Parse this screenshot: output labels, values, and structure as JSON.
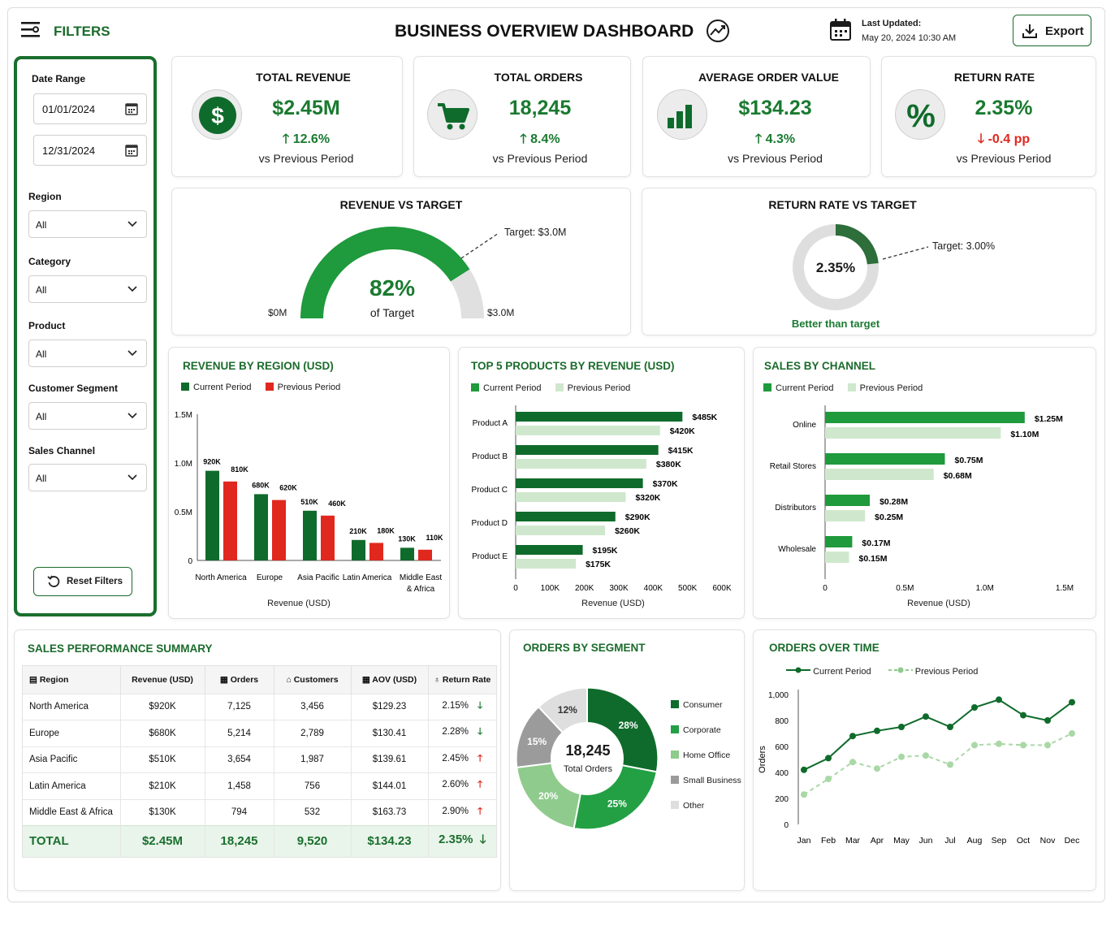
{
  "header": {
    "filters_label": "FILTERS",
    "title": "BUSINESS OVERVIEW DASHBOARD",
    "last_updated_label": "Last Updated:",
    "last_updated_value": "May 20, 2024 10:30 AM",
    "export_label": "Export"
  },
  "filters": {
    "date_range_label": "Date Range",
    "start_date": "01/01/2024",
    "end_date": "12/31/2024",
    "region_label": "Region",
    "region_value": "All",
    "category_label": "Category",
    "category_value": "All",
    "product_label": "Product",
    "product_value": "All",
    "segment_label": "Customer Segment",
    "segment_value": "All",
    "channel_label": "Sales Channel",
    "channel_value": "All",
    "reset_label": "Reset Filters"
  },
  "kpis": [
    {
      "title": "TOTAL REVENUE",
      "value": "$2.45M",
      "change": "12.6%",
      "direction": "up",
      "sub": "vs Previous Period",
      "icon": "dollar-icon"
    },
    {
      "title": "TOTAL ORDERS",
      "value": "18,245",
      "change": "8.4%",
      "direction": "up",
      "sub": "vs Previous Period",
      "icon": "cart-icon"
    },
    {
      "title": "AVERAGE ORDER VALUE",
      "value": "$134.23",
      "change": "4.3%",
      "direction": "up",
      "sub": "vs Previous Period",
      "icon": "bar-chart-icon"
    },
    {
      "title": "RETURN RATE",
      "value": "2.35%",
      "change": "-0.4 pp",
      "direction": "down",
      "sub": "vs Previous Period",
      "icon": "percent-icon"
    }
  ],
  "revenue_target": {
    "title": "REVENUE VS TARGET",
    "percent": "82%",
    "percent_value": 82,
    "of_target": "of Target",
    "min_label": "$0M",
    "max_label": "$3.0M",
    "target_label": "Target: $3.0M"
  },
  "return_target": {
    "title": "RETURN RATE VS TARGET",
    "value": "2.35%",
    "value_num": 2.35,
    "target_num": 3.0,
    "target_label": "Target: 3.00%",
    "status": "Better than target"
  },
  "colors": {
    "dark_green": "#0f6b2b",
    "green": "#1f9a3c",
    "light_green": "#a9d8a6",
    "pale_green": "#cfe8cd",
    "red": "#e0281f",
    "gray": "#9a9a9a",
    "light_gray": "#dedede"
  },
  "chart_data": [
    {
      "type": "bar",
      "title": "REVENUE BY REGION (USD)",
      "xlabel": "Revenue (USD)",
      "categories": [
        "North America",
        "Europe",
        "Asia Pacific",
        "Latin America",
        "Middle East & Africa"
      ],
      "series": [
        {
          "name": "Current Period",
          "values": [
            920,
            680,
            510,
            210,
            130
          ],
          "labels": [
            "920K",
            "680K",
            "510K",
            "210K",
            "130K"
          ]
        },
        {
          "name": "Previous Period",
          "values": [
            810,
            620,
            460,
            180,
            110
          ],
          "labels": [
            "810K",
            "620K",
            "460K",
            "180K",
            "110K"
          ]
        }
      ],
      "yticks": [
        "0",
        "0.5M",
        "1.0M",
        "1.5M"
      ],
      "ylim": [
        0,
        1500
      ]
    },
    {
      "type": "bar",
      "orientation": "horizontal",
      "title": "TOP 5 PRODUCTS BY REVENUE (USD)",
      "xlabel": "Revenue (USD)",
      "categories": [
        "Product A",
        "Product B",
        "Product C",
        "Product D",
        "Product E"
      ],
      "series": [
        {
          "name": "Current Period",
          "values": [
            485,
            415,
            370,
            290,
            195
          ],
          "labels": [
            "$485K",
            "$415K",
            "$370K",
            "$290K",
            "$195K"
          ]
        },
        {
          "name": "Previous Period",
          "values": [
            420,
            380,
            320,
            260,
            175
          ],
          "labels": [
            "$420K",
            "$380K",
            "$320K",
            "$260K",
            "$175K"
          ]
        }
      ],
      "xticks": [
        "0",
        "100K",
        "200K",
        "300K",
        "400K",
        "500K",
        "600K"
      ],
      "xlim": [
        0,
        600
      ]
    },
    {
      "type": "bar",
      "orientation": "horizontal",
      "title": "SALES BY CHANNEL",
      "xlabel": "Revenue (USD)",
      "categories": [
        "Online",
        "Retail Stores",
        "Distributors",
        "Wholesale"
      ],
      "series": [
        {
          "name": "Current Period",
          "values": [
            1.25,
            0.75,
            0.28,
            0.17
          ],
          "labels": [
            "$1.25M",
            "$0.75M",
            "$0.28M",
            "$0.17M"
          ]
        },
        {
          "name": "Previous Period",
          "values": [
            1.1,
            0.68,
            0.25,
            0.15
          ],
          "labels": [
            "$1.10M",
            "$0.68M",
            "$0.25M",
            "$0.15M"
          ]
        }
      ],
      "xticks": [
        "0",
        "0.5M",
        "1.0M",
        "1.5M"
      ],
      "xlim": [
        0,
        1.5
      ]
    },
    {
      "type": "pie",
      "title": "ORDERS BY SEGMENT",
      "center_value": "18,245",
      "center_label": "Total Orders",
      "slices": [
        {
          "name": "Consumer",
          "value": 28,
          "label": "28%",
          "color": "#0f6b2b"
        },
        {
          "name": "Corporate",
          "value": 25,
          "label": "25%",
          "color": "#23a044"
        },
        {
          "name": "Home Office",
          "value": 20,
          "label": "20%",
          "color": "#8fcb8c"
        },
        {
          "name": "Small Business",
          "value": 15,
          "label": "15%",
          "color": "#9b9b9b"
        },
        {
          "name": "Other",
          "value": 12,
          "label": "12%",
          "color": "#dedede"
        }
      ]
    },
    {
      "type": "line",
      "title": "ORDERS OVER TIME",
      "ylabel": "Orders",
      "x": [
        "Jan",
        "Feb",
        "Mar",
        "Apr",
        "May",
        "Jun",
        "Jul",
        "Aug",
        "Sep",
        "Oct",
        "Nov",
        "Dec"
      ],
      "series": [
        {
          "name": "Current Period",
          "values": [
            420,
            510,
            680,
            720,
            750,
            830,
            750,
            900,
            960,
            840,
            800,
            940
          ]
        },
        {
          "name": "Previous Period",
          "values": [
            230,
            350,
            480,
            430,
            520,
            530,
            460,
            610,
            620,
            610,
            610,
            700
          ]
        }
      ],
      "yticks": [
        "0",
        "200",
        "400",
        "600",
        "800",
        "1,000"
      ],
      "ylim": [
        0,
        1000
      ]
    }
  ],
  "summary": {
    "title": "SALES PERFORMANCE SUMMARY",
    "headers": [
      "Region",
      "Revenue (USD)",
      "Orders",
      "Customers",
      "AOV (USD)",
      "Return Rate"
    ],
    "rows": [
      {
        "region": "North America",
        "revenue": "$920K",
        "orders": "7,125",
        "customers": "3,456",
        "aov": "$129.23",
        "return_rate": "2.15%",
        "trend": "down"
      },
      {
        "region": "Europe",
        "revenue": "$680K",
        "orders": "5,214",
        "customers": "2,789",
        "aov": "$130.41",
        "return_rate": "2.28%",
        "trend": "down"
      },
      {
        "region": "Asia Pacific",
        "revenue": "$510K",
        "orders": "3,654",
        "customers": "1,987",
        "aov": "$139.61",
        "return_rate": "2.45%",
        "trend": "up"
      },
      {
        "region": "Latin America",
        "revenue": "$210K",
        "orders": "1,458",
        "customers": "756",
        "aov": "$144.01",
        "return_rate": "2.60%",
        "trend": "up"
      },
      {
        "region": "Middle East & Africa",
        "revenue": "$130K",
        "orders": "794",
        "customers": "532",
        "aov": "$163.73",
        "return_rate": "2.90%",
        "trend": "up"
      }
    ],
    "total": {
      "region": "TOTAL",
      "revenue": "$2.45M",
      "orders": "18,245",
      "customers": "9,520",
      "aov": "$134.23",
      "return_rate": "2.35%",
      "trend": "down"
    }
  }
}
